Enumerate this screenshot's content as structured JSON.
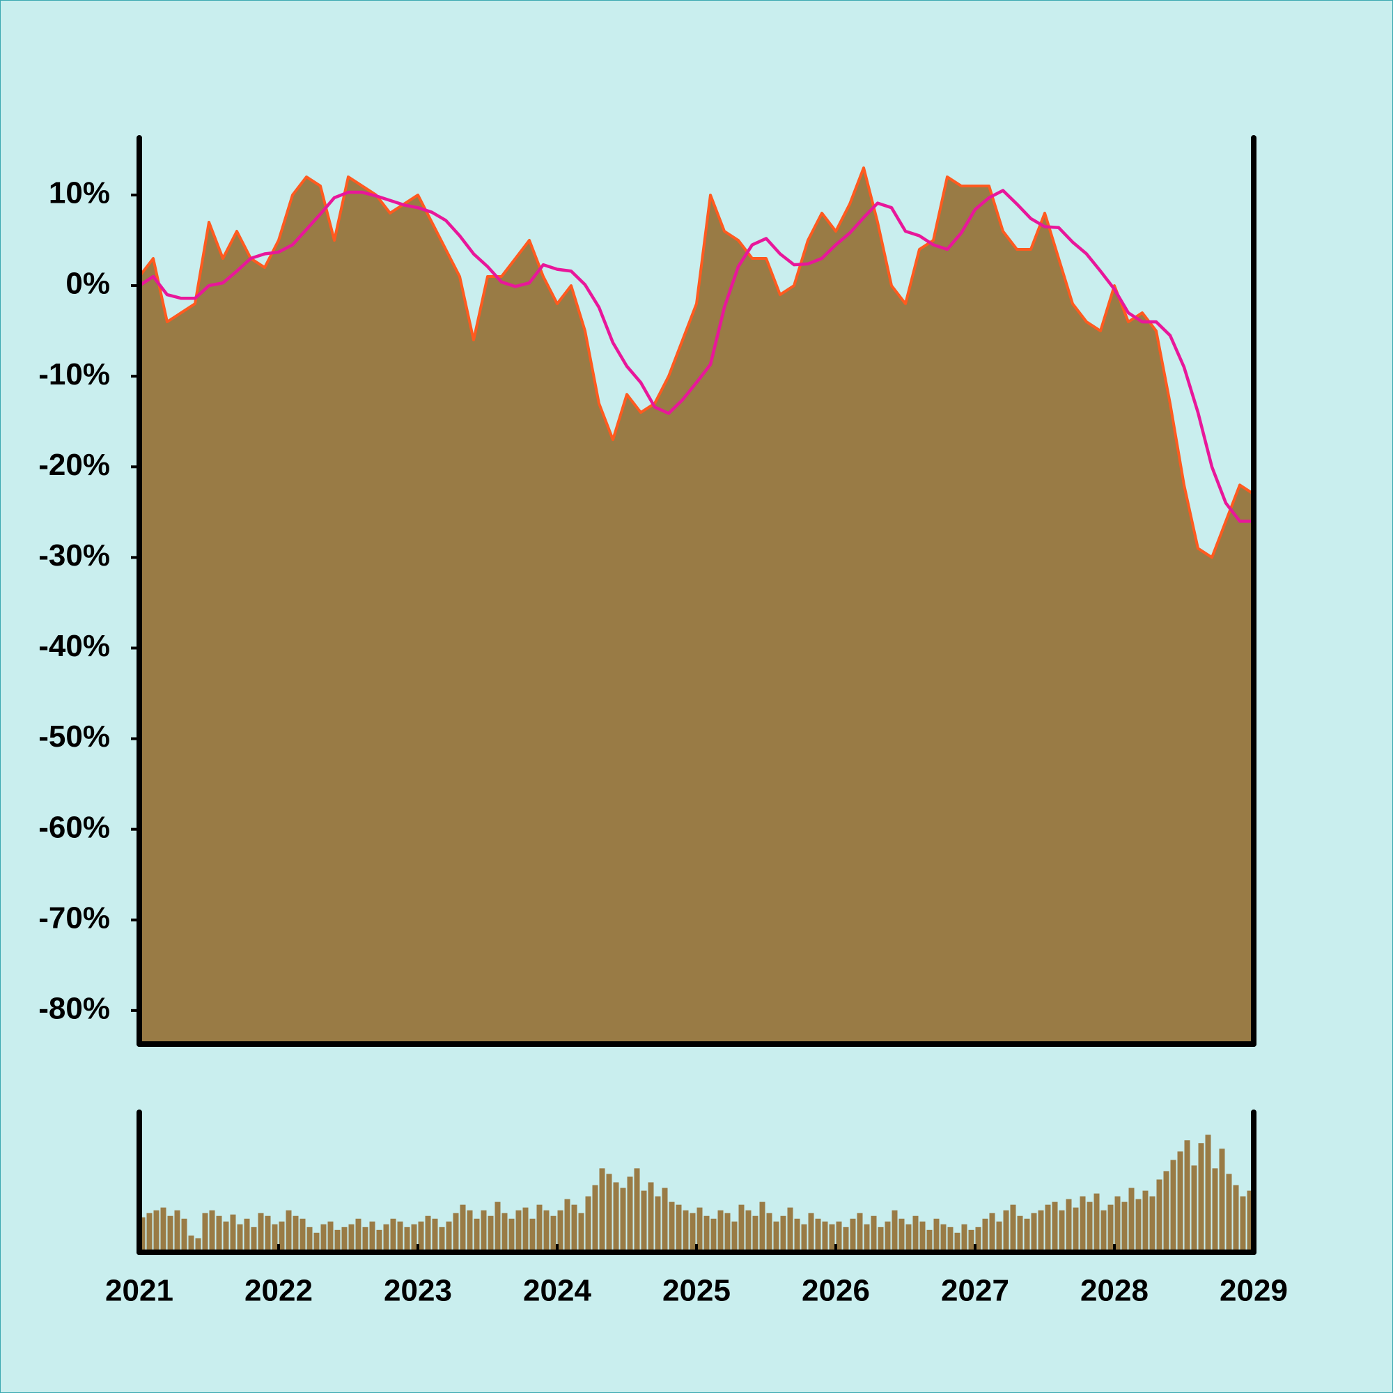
{
  "chart_data": [
    {
      "type": "area",
      "x": [
        2021.0,
        2021.1,
        2021.2,
        2021.3,
        2021.4,
        2021.5,
        2021.6,
        2021.7,
        2021.8,
        2021.9,
        2022.0,
        2022.1,
        2022.2,
        2022.3,
        2022.4,
        2022.5,
        2022.6,
        2022.7,
        2022.8,
        2022.9,
        2023.0,
        2023.1,
        2023.2,
        2023.3,
        2023.4,
        2023.5,
        2023.6,
        2023.7,
        2023.8,
        2023.9,
        2024.0,
        2024.1,
        2024.2,
        2024.3,
        2024.4,
        2024.5,
        2024.6,
        2024.7,
        2024.8,
        2024.9,
        2025.0,
        2025.1,
        2025.2,
        2025.3,
        2025.4,
        2025.5,
        2025.6,
        2025.7,
        2025.8,
        2025.9,
        2026.0,
        2026.1,
        2026.2,
        2026.3,
        2026.4,
        2026.5,
        2026.6,
        2026.7,
        2026.8,
        2026.9,
        2027.0,
        2027.1,
        2027.2,
        2027.3,
        2027.4,
        2027.5,
        2027.6,
        2027.7,
        2027.8,
        2027.9,
        2028.0,
        2028.1,
        2028.2,
        2028.3,
        2028.4,
        2028.5,
        2028.6,
        2028.7,
        2028.8,
        2028.9,
        2029.0
      ],
      "series": [
        {
          "color": "#997b45",
          "edgecolor": "#ff5a1f",
          "values": [
            1,
            3,
            -4,
            -3,
            -2,
            7,
            3,
            6,
            3,
            2,
            5,
            10,
            12,
            11,
            5,
            12,
            11,
            10,
            8,
            9,
            10,
            7,
            4,
            1,
            -6,
            1,
            1,
            3,
            5,
            1,
            -2,
            0,
            -5,
            -13,
            -17,
            -12,
            -14,
            -13,
            -10,
            -6,
            -2,
            10,
            6,
            5,
            3,
            3,
            -1,
            0,
            5,
            8,
            6,
            9,
            13,
            7,
            0,
            -2,
            4,
            5,
            12,
            11,
            11,
            11,
            6,
            4,
            4,
            8,
            3,
            -2,
            -4,
            -5,
            0,
            -4,
            -3,
            -5,
            -13,
            -22,
            -29,
            -30,
            -26,
            -22,
            -23
          ]
        },
        {
          "type": "line",
          "color": "#e8179a",
          "values": [
            0,
            1,
            -1,
            -1.4,
            -1.4,
            0,
            0.3,
            1.6,
            3,
            3.5,
            3.7,
            4.5,
            6.2,
            7.9,
            9.7,
            10.3,
            10.3,
            9.9,
            9.4,
            8.9,
            8.6,
            8.1,
            7.2,
            5.5,
            3.5,
            2.1,
            0.4,
            -0.1,
            0.3,
            2.3,
            1.8,
            1.6,
            0.1,
            -2.4,
            -6.3,
            -8.9,
            -10.7,
            -13.4,
            -14.1,
            -12.6,
            -10.7,
            -8.7,
            -2.4,
            2.1,
            4.5,
            5.2,
            3.5,
            2.3,
            2.4,
            3,
            4.5,
            5.8,
            7.5,
            9.1,
            8.6,
            6,
            5.5,
            4.5,
            4,
            5.8,
            8.4,
            9.7,
            10.5,
            9,
            7.4,
            6.5,
            6.4,
            4.8,
            3.5,
            1.6,
            -0.4,
            -3,
            -4,
            -4,
            -5.5,
            -9,
            -14,
            -20,
            -24,
            -26,
            -26
          ]
        }
      ],
      "xlim": [
        2021,
        2029
      ],
      "ylim": [
        -83.7,
        16.3
      ],
      "yticks": [
        {
          "value": -80,
          "label": "-80%"
        },
        {
          "value": -70,
          "label": "-70%"
        },
        {
          "value": -60,
          "label": "-60%"
        },
        {
          "value": -50,
          "label": "-50%"
        },
        {
          "value": -40,
          "label": "-40%"
        },
        {
          "value": -30,
          "label": "-30%"
        },
        {
          "value": -20,
          "label": "-20%"
        },
        {
          "value": -10,
          "label": "-10%"
        },
        {
          "value": 0,
          "label": "0%"
        },
        {
          "value": 10,
          "label": "10%"
        }
      ]
    },
    {
      "type": "bar",
      "color": "#997b45",
      "x": [
        2021.0,
        2021.05,
        2021.1,
        2021.15,
        2021.2,
        2021.25,
        2021.3,
        2021.35,
        2021.4,
        2021.45,
        2021.5,
        2021.55,
        2021.6,
        2021.65,
        2021.7,
        2021.75,
        2021.8,
        2021.85,
        2021.9,
        2021.95,
        2022.0,
        2022.05,
        2022.1,
        2022.15,
        2022.2,
        2022.25,
        2022.3,
        2022.35,
        2022.4,
        2022.45,
        2022.5,
        2022.55,
        2022.6,
        2022.65,
        2022.7,
        2022.75,
        2022.8,
        2022.85,
        2022.9,
        2022.95,
        2023.0,
        2023.05,
        2023.1,
        2023.15,
        2023.2,
        2023.25,
        2023.3,
        2023.35,
        2023.4,
        2023.45,
        2023.5,
        2023.55,
        2023.6,
        2023.65,
        2023.7,
        2023.75,
        2023.8,
        2023.85,
        2023.9,
        2023.95,
        2024.0,
        2024.05,
        2024.1,
        2024.15,
        2024.2,
        2024.25,
        2024.3,
        2024.35,
        2024.4,
        2024.45,
        2024.5,
        2024.55,
        2024.6,
        2024.65,
        2024.7,
        2024.75,
        2024.8,
        2024.85,
        2024.9,
        2024.95,
        2025.0,
        2025.05,
        2025.1,
        2025.15,
        2025.2,
        2025.25,
        2025.3,
        2025.35,
        2025.4,
        2025.45,
        2025.5,
        2025.55,
        2025.6,
        2025.65,
        2025.7,
        2025.75,
        2025.8,
        2025.85,
        2025.9,
        2025.95,
        2026.0,
        2026.05,
        2026.1,
        2026.15,
        2026.2,
        2026.25,
        2026.3,
        2026.35,
        2026.4,
        2026.45,
        2026.5,
        2026.55,
        2026.6,
        2026.65,
        2026.7,
        2026.75,
        2026.8,
        2026.85,
        2026.9,
        2026.95,
        2027.0,
        2027.05,
        2027.1,
        2027.15,
        2027.2,
        2027.25,
        2027.3,
        2027.35,
        2027.4,
        2027.45,
        2027.5,
        2027.55,
        2027.6,
        2027.65,
        2027.7,
        2027.75,
        2027.8,
        2027.85,
        2027.9,
        2027.95,
        2028.0,
        2028.05,
        2028.1,
        2028.15,
        2028.2,
        2028.25,
        2028.3,
        2028.35,
        2028.4,
        2028.45,
        2028.5,
        2028.55,
        2028.6,
        2028.65,
        2028.7,
        2028.75,
        2028.8,
        2028.85,
        2028.9,
        2028.95
      ],
      "values": [
        25,
        28,
        30,
        32,
        26,
        30,
        24,
        12,
        10,
        28,
        30,
        26,
        22,
        27,
        20,
        24,
        18,
        28,
        26,
        20,
        22,
        30,
        26,
        24,
        18,
        14,
        20,
        22,
        16,
        18,
        20,
        24,
        18,
        22,
        16,
        20,
        24,
        22,
        18,
        20,
        22,
        26,
        24,
        18,
        22,
        28,
        34,
        30,
        24,
        30,
        26,
        36,
        28,
        24,
        30,
        32,
        24,
        34,
        30,
        26,
        30,
        38,
        34,
        28,
        40,
        48,
        60,
        56,
        50,
        46,
        54,
        60,
        44,
        50,
        40,
        46,
        36,
        34,
        30,
        28,
        32,
        26,
        24,
        30,
        28,
        22,
        34,
        30,
        26,
        36,
        28,
        22,
        26,
        32,
        24,
        20,
        28,
        24,
        22,
        20,
        22,
        18,
        24,
        28,
        20,
        26,
        18,
        22,
        30,
        24,
        20,
        26,
        22,
        16,
        24,
        20,
        18,
        14,
        20,
        16,
        18,
        24,
        28,
        22,
        30,
        34,
        26,
        24,
        28,
        30,
        34,
        36,
        30,
        38,
        32,
        40,
        36,
        42,
        30,
        34,
        40,
        36,
        46,
        38,
        44,
        40,
        52,
        58,
        66,
        72,
        80,
        62,
        78,
        84,
        60,
        74,
        56,
        48,
        40,
        44
      ],
      "xlim": [
        2021,
        2029
      ],
      "ylim": [
        0,
        100
      ],
      "xticks": [
        2021,
        2022,
        2023,
        2024,
        2025,
        2026,
        2027,
        2028,
        2029
      ]
    }
  ]
}
